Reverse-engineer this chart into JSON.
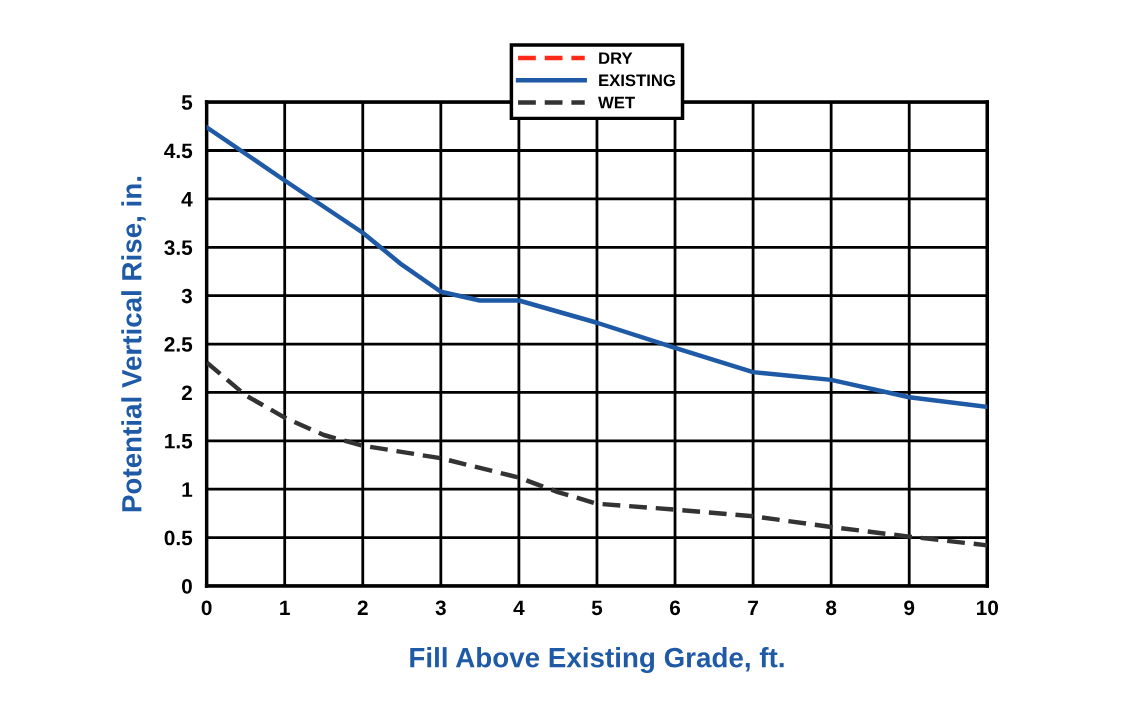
{
  "chart_data": {
    "type": "line",
    "xlabel": "Fill Above Existing Grade, ft.",
    "ylabel": "Potential Vertical Rise, in.",
    "xlim": [
      0,
      10
    ],
    "xticks": [
      0,
      1,
      2,
      3,
      4,
      5,
      6,
      7,
      8,
      9,
      10
    ],
    "ylim": [
      0,
      5
    ],
    "yticks": [
      0,
      0.5,
      1,
      1.5,
      2,
      2.5,
      3,
      3.5,
      4,
      4.5,
      5
    ],
    "grid": true,
    "legend": "top",
    "marker": "none",
    "series": [
      {
        "name": "DRY",
        "color": "#ff2a1a",
        "line_style": "dashed"
      },
      {
        "name": "EXISTING",
        "color": "#1f5aa6",
        "line_style": "solid",
        "x": [
          0,
          1,
          2,
          2.5,
          3,
          3.5,
          4,
          5,
          6,
          7,
          7.5,
          8,
          9,
          10
        ],
        "values": [
          4.74,
          4.19,
          3.65,
          3.32,
          3.04,
          2.95,
          2.95,
          2.72,
          2.46,
          2.21,
          2.17,
          2.13,
          1.95,
          1.85
        ]
      },
      {
        "name": "WET",
        "color": "#333333",
        "line_style": "dashed",
        "x": [
          0,
          0.5,
          1,
          1.5,
          2,
          3,
          4,
          4.5,
          5,
          6,
          7,
          8,
          9,
          10
        ],
        "values": [
          2.31,
          1.97,
          1.74,
          1.56,
          1.45,
          1.32,
          1.12,
          0.97,
          0.85,
          0.79,
          0.72,
          0.61,
          0.51,
          0.42
        ]
      }
    ]
  }
}
